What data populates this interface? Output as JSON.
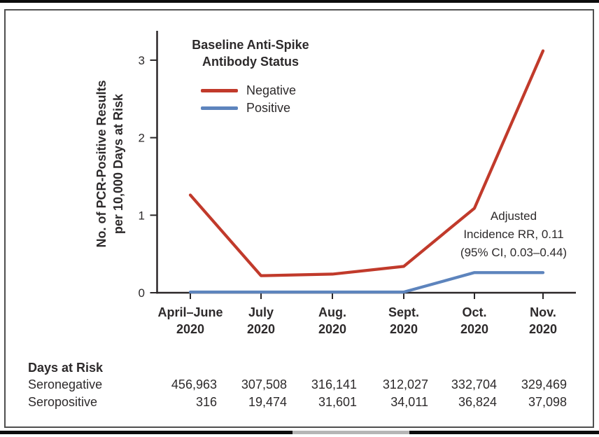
{
  "chart_data": {
    "type": "line",
    "title": "",
    "categories": [
      {
        "line1": "April–June",
        "line2": "2020"
      },
      {
        "line1": "July",
        "line2": "2020"
      },
      {
        "line1": "Aug.",
        "line2": "2020"
      },
      {
        "line1": "Sept.",
        "line2": "2020"
      },
      {
        "line1": "Oct.",
        "line2": "2020"
      },
      {
        "line1": "Nov.",
        "line2": "2020"
      }
    ],
    "series": [
      {
        "name": "Negative",
        "color": "#c13a2b",
        "values": [
          1.26,
          0.22,
          0.24,
          0.34,
          1.09,
          3.12
        ]
      },
      {
        "name": "Positive",
        "color": "#5d84bd",
        "values": [
          0,
          0,
          0,
          0,
          0.26,
          0.26
        ]
      }
    ],
    "ylabel": "No. of PCR-Positive Results per 10,000 Days at Risk",
    "ylabel_lines": [
      "No. of PCR-Positive Results",
      "per 10,000 Days at Risk"
    ],
    "yticks": [
      0,
      1,
      2,
      3
    ],
    "ylim": [
      0,
      3.2
    ],
    "grid": false,
    "legend": {
      "position": "top-left-inside",
      "title_lines": [
        "Baseline Anti-Spike",
        "Antibody Status"
      ]
    },
    "annotation": "Adjusted Incidence RR, 0.11 (95% CI, 0.03–0.44)",
    "annotation_lines": [
      "Adjusted",
      "Incidence RR, 0.11",
      "(95% CI, 0.03–0.44)"
    ],
    "days_at_risk": {
      "header": "Days at Risk",
      "rows": [
        {
          "label": "Seronegative",
          "values": [
            "456,963",
            "307,508",
            "316,141",
            "312,027",
            "332,704",
            "329,469"
          ]
        },
        {
          "label": "Seropositive",
          "values": [
            "316",
            "19,474",
            "31,601",
            "34,011",
            "36,824",
            "37,098"
          ]
        }
      ]
    },
    "axis_color": "#2b2728"
  }
}
